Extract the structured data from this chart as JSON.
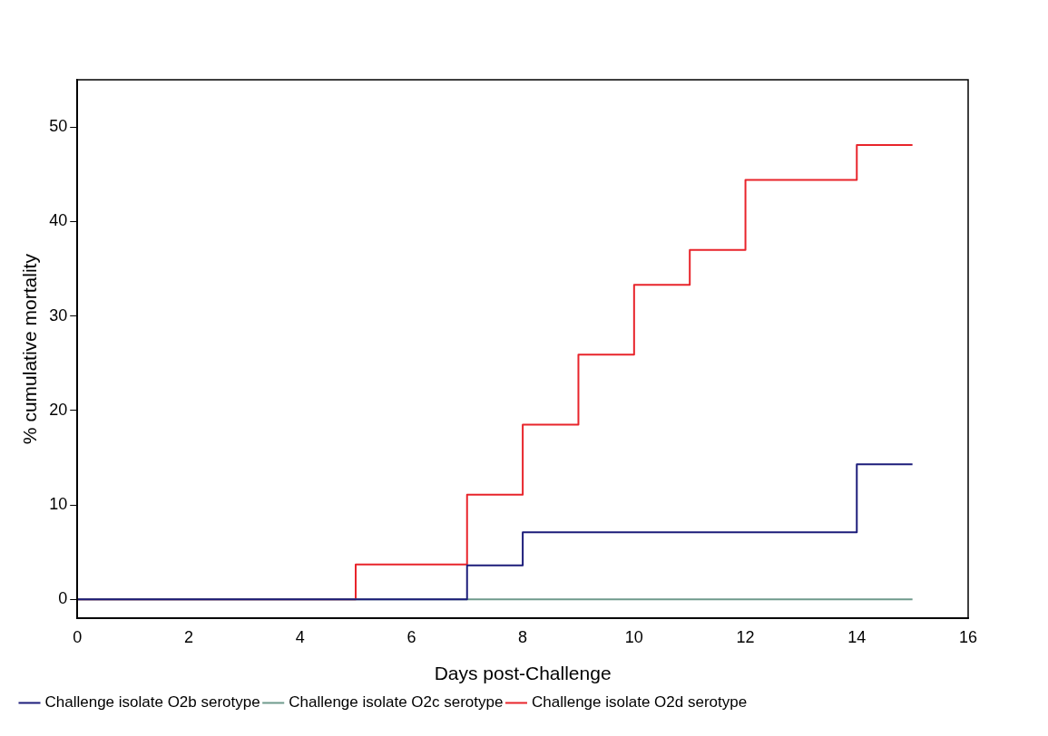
{
  "chart_data": {
    "type": "step",
    "xlabel": "Days post-Challenge",
    "ylabel": "% cumulative mortality",
    "xlim": [
      0,
      16
    ],
    "xticks": [
      0,
      2,
      4,
      6,
      8,
      10,
      12,
      14,
      16
    ],
    "ylim": [
      -2,
      55
    ],
    "yticks": [
      0,
      10,
      20,
      30,
      40,
      50
    ],
    "grid": false,
    "legend": "bottom left",
    "marker": "none",
    "line_style": "solid",
    "series": [
      {
        "name": "Challenge isolate O2b serotype",
        "color": "#1c1c7a",
        "x": [
          0,
          7,
          8,
          14,
          15
        ],
        "values": [
          0,
          3.6,
          7.1,
          14.3,
          14.3
        ]
      },
      {
        "name": "Challenge isolate O2c serotype",
        "color": "#6f9a8c",
        "x": [
          0,
          15
        ],
        "values": [
          0,
          0
        ]
      },
      {
        "name": "Challenge isolate O2d serotype",
        "color": "#e8242b",
        "x": [
          0,
          5,
          7,
          8,
          9,
          10,
          11,
          12,
          14,
          15
        ],
        "values": [
          0,
          3.7,
          11.1,
          18.5,
          25.9,
          33.3,
          37.0,
          44.4,
          48.1,
          48.1
        ]
      }
    ]
  }
}
